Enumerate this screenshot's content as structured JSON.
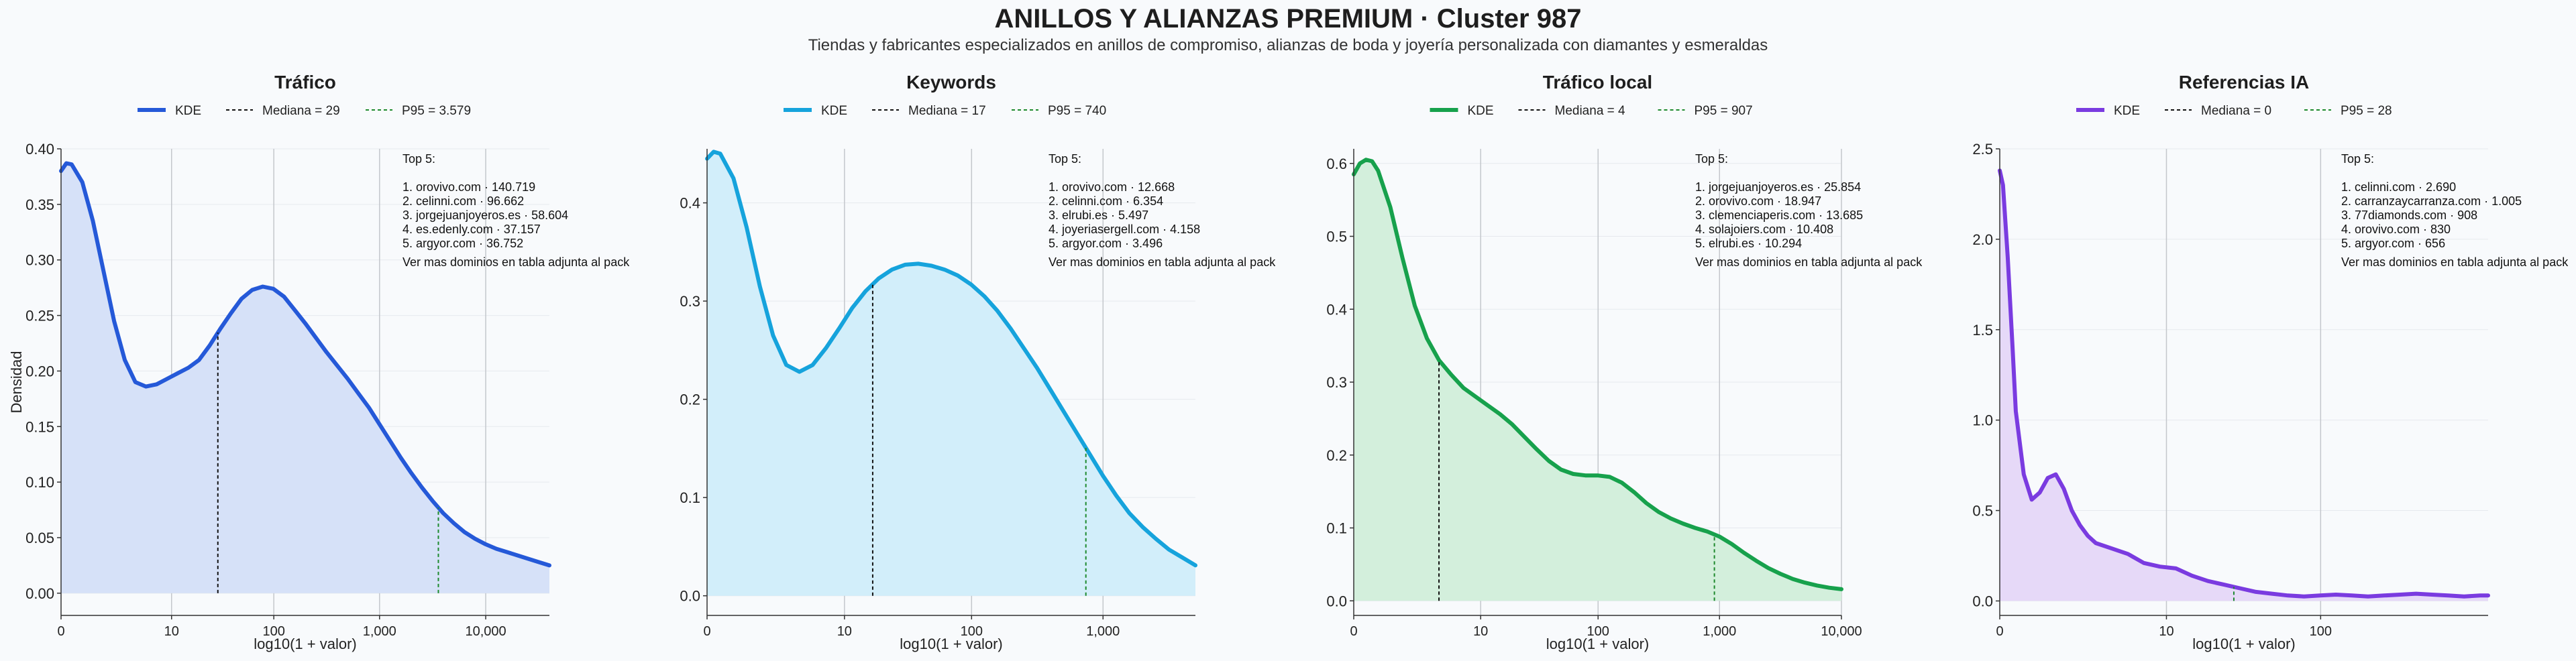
{
  "header": {
    "title": "ANILLOS Y ALIANZAS PREMIUM · Cluster 987",
    "subtitle": "Tiendas y fabricantes especializados en anillos de compromiso, alianzas de boda y joyería personalizada con diamantes y esmeraldas"
  },
  "chart_data": [
    {
      "type": "line",
      "title": "Tráfico",
      "color": "#2559d8",
      "fill": "#d6e1f8",
      "xlabel": "log10(1 + valor)",
      "ylabel": "Densidad",
      "xlim": [
        0,
        4.6
      ],
      "ylim": [
        -0.02,
        0.4
      ],
      "yticks": [
        0.0,
        0.05,
        0.1,
        0.15,
        0.2,
        0.25,
        0.3,
        0.35,
        0.4
      ],
      "ytick_labels": [
        "0.00",
        "0.05",
        "0.10",
        "0.15",
        "0.20",
        "0.25",
        "0.30",
        "0.35",
        "0.40"
      ],
      "xticks": [
        0,
        1.041,
        2.004,
        3.0,
        4.0
      ],
      "xtick_labels": [
        "0",
        "10",
        "100",
        "1,000",
        "10,000"
      ],
      "legend": {
        "kde": "KDE",
        "median": "Mediana = 29",
        "p95": "P95 = 3.579"
      },
      "median_x": 1.477,
      "p95_x": 3.554,
      "top5_title": "Top 5:",
      "top5": [
        "1. orovivo.com · 140.719",
        "2. celinni.com · 96.662",
        "3. jorgejuanjoyeros.es · 58.604",
        "4. es.edenly.com · 37.157",
        "5. argyor.com · 36.752"
      ],
      "top5_note": "Ver mas dominios en tabla adjunta al pack",
      "x": [
        0,
        0.05,
        0.1,
        0.2,
        0.3,
        0.4,
        0.5,
        0.6,
        0.7,
        0.8,
        0.9,
        1.0,
        1.1,
        1.2,
        1.3,
        1.4,
        1.5,
        1.6,
        1.7,
        1.8,
        1.9,
        2.0,
        2.1,
        2.2,
        2.3,
        2.4,
        2.5,
        2.6,
        2.7,
        2.8,
        2.9,
        3.0,
        3.1,
        3.2,
        3.3,
        3.4,
        3.5,
        3.6,
        3.7,
        3.8,
        3.9,
        4.0,
        4.1,
        4.2,
        4.3,
        4.4,
        4.5,
        4.6
      ],
      "y": [
        0.38,
        0.387,
        0.386,
        0.37,
        0.335,
        0.29,
        0.245,
        0.21,
        0.19,
        0.186,
        0.188,
        0.193,
        0.198,
        0.203,
        0.21,
        0.223,
        0.238,
        0.252,
        0.265,
        0.273,
        0.276,
        0.274,
        0.267,
        0.255,
        0.243,
        0.23,
        0.217,
        0.205,
        0.193,
        0.18,
        0.167,
        0.152,
        0.137,
        0.122,
        0.108,
        0.095,
        0.083,
        0.072,
        0.063,
        0.055,
        0.049,
        0.044,
        0.04,
        0.037,
        0.034,
        0.031,
        0.028,
        0.025
      ]
    },
    {
      "type": "line",
      "title": "Keywords",
      "color": "#16a3dc",
      "fill": "#d2eefa",
      "xlabel": "log10(1 + valor)",
      "ylabel": "",
      "xlim": [
        0,
        3.7
      ],
      "ylim": [
        -0.02,
        0.455
      ],
      "yticks": [
        0.0,
        0.1,
        0.2,
        0.3,
        0.4
      ],
      "ytick_labels": [
        "0.0",
        "0.1",
        "0.2",
        "0.3",
        "0.4"
      ],
      "xticks": [
        0,
        1.041,
        2.004,
        3.0
      ],
      "xtick_labels": [
        "0",
        "10",
        "100",
        "1,000"
      ],
      "legend": {
        "kde": "KDE",
        "median": "Mediana = 17",
        "p95": "P95 = 740"
      },
      "median_x": 1.255,
      "p95_x": 2.87,
      "top5_title": "Top 5:",
      "top5": [
        "1. orovivo.com · 12.668",
        "2. celinni.com · 6.354",
        "3. elrubi.es · 5.497",
        "4. joyeriasergell.com · 4.158",
        "5. argyor.com · 3.496"
      ],
      "top5_note": "Ver mas dominios en tabla adjunta al pack",
      "x": [
        0,
        0.05,
        0.1,
        0.2,
        0.3,
        0.4,
        0.5,
        0.6,
        0.7,
        0.8,
        0.9,
        1.0,
        1.1,
        1.2,
        1.3,
        1.4,
        1.5,
        1.6,
        1.7,
        1.8,
        1.9,
        2.0,
        2.1,
        2.2,
        2.3,
        2.4,
        2.5,
        2.6,
        2.7,
        2.8,
        2.9,
        3.0,
        3.1,
        3.2,
        3.3,
        3.4,
        3.5,
        3.6,
        3.7
      ],
      "y": [
        0.445,
        0.452,
        0.45,
        0.425,
        0.375,
        0.315,
        0.265,
        0.235,
        0.228,
        0.235,
        0.252,
        0.272,
        0.293,
        0.31,
        0.323,
        0.332,
        0.337,
        0.338,
        0.336,
        0.332,
        0.326,
        0.317,
        0.305,
        0.29,
        0.272,
        0.252,
        0.232,
        0.21,
        0.188,
        0.166,
        0.144,
        0.122,
        0.102,
        0.084,
        0.07,
        0.058,
        0.047,
        0.039,
        0.031
      ]
    },
    {
      "type": "line",
      "title": "Tráfico local",
      "color": "#17a14c",
      "fill": "#d3efdc",
      "xlabel": "log10(1 + valor)",
      "ylabel": "",
      "xlim": [
        0,
        4.0
      ],
      "ylim": [
        -0.02,
        0.62
      ],
      "yticks": [
        0.0,
        0.1,
        0.2,
        0.3,
        0.4,
        0.5,
        0.6
      ],
      "ytick_labels": [
        "0.0",
        "0.1",
        "0.2",
        "0.3",
        "0.4",
        "0.5",
        "0.6"
      ],
      "xticks": [
        0,
        1.041,
        2.004,
        3.0,
        4.0
      ],
      "xtick_labels": [
        "0",
        "10",
        "100",
        "1,000",
        "10,000"
      ],
      "legend": {
        "kde": "KDE",
        "median": "Mediana = 4",
        "p95": "P95 = 907"
      },
      "median_x": 0.699,
      "p95_x": 2.958,
      "top5_title": "Top 5:",
      "top5": [
        "1. jorgejuanjoyeros.es · 25.854",
        "2. orovivo.com · 18.947",
        "3. clemenciaperis.com · 13.685",
        "4. solajoiers.com · 10.408",
        "5. elrubi.es · 10.294"
      ],
      "top5_note": "Ver mas dominios en tabla adjunta al pack",
      "x": [
        0,
        0.05,
        0.1,
        0.15,
        0.2,
        0.3,
        0.4,
        0.5,
        0.6,
        0.7,
        0.8,
        0.9,
        1.0,
        1.1,
        1.2,
        1.3,
        1.4,
        1.5,
        1.6,
        1.7,
        1.8,
        1.9,
        2.0,
        2.1,
        2.2,
        2.3,
        2.4,
        2.5,
        2.6,
        2.7,
        2.8,
        2.9,
        3.0,
        3.1,
        3.2,
        3.3,
        3.4,
        3.5,
        3.6,
        3.7,
        3.8,
        3.9,
        4.0
      ],
      "y": [
        0.585,
        0.6,
        0.605,
        0.603,
        0.59,
        0.54,
        0.47,
        0.405,
        0.36,
        0.33,
        0.31,
        0.292,
        0.28,
        0.268,
        0.256,
        0.242,
        0.225,
        0.208,
        0.192,
        0.18,
        0.174,
        0.172,
        0.172,
        0.17,
        0.162,
        0.149,
        0.134,
        0.122,
        0.113,
        0.106,
        0.1,
        0.095,
        0.088,
        0.078,
        0.066,
        0.055,
        0.045,
        0.037,
        0.03,
        0.025,
        0.021,
        0.018,
        0.016
      ]
    },
    {
      "type": "line",
      "title": "Referencias IA",
      "color": "#7a3be0",
      "fill": "#e6d9f8",
      "xlabel": "log10(1 + valor)",
      "ylabel": "",
      "xlim": [
        0,
        3.05
      ],
      "ylim": [
        -0.08,
        2.5
      ],
      "yticks": [
        0.0,
        0.5,
        1.0,
        1.5,
        2.0,
        2.5
      ],
      "ytick_labels": [
        "0.0",
        "0.5",
        "1.0",
        "1.5",
        "2.0",
        "2.5"
      ],
      "xticks": [
        0,
        1.041,
        2.004
      ],
      "xtick_labels": [
        "0",
        "10",
        "100"
      ],
      "legend": {
        "kde": "KDE",
        "median": "Mediana = 0",
        "p95": "P95 = 28"
      },
      "median_x": 0.0,
      "p95_x": 1.462,
      "top5_title": "Top 5:",
      "top5": [
        "1. celinni.com · 2.690",
        "2. carranzaycarranza.com · 1.005",
        "3. 77diamonds.com · 908",
        "4. orovivo.com · 830",
        "5. argyor.com · 656"
      ],
      "top5_note": "Ver mas dominios en tabla adjunta al pack",
      "x": [
        0,
        0.02,
        0.05,
        0.08,
        0.1,
        0.15,
        0.2,
        0.25,
        0.3,
        0.35,
        0.4,
        0.45,
        0.5,
        0.55,
        0.6,
        0.7,
        0.8,
        0.9,
        1.0,
        1.1,
        1.2,
        1.3,
        1.4,
        1.5,
        1.6,
        1.7,
        1.8,
        1.9,
        2.0,
        2.1,
        2.2,
        2.3,
        2.4,
        2.5,
        2.6,
        2.7,
        2.8,
        2.9,
        3.0,
        3.05
      ],
      "y": [
        2.38,
        2.3,
        1.9,
        1.4,
        1.05,
        0.7,
        0.56,
        0.6,
        0.68,
        0.7,
        0.62,
        0.5,
        0.42,
        0.36,
        0.32,
        0.29,
        0.26,
        0.21,
        0.19,
        0.18,
        0.14,
        0.11,
        0.09,
        0.07,
        0.05,
        0.04,
        0.03,
        0.025,
        0.03,
        0.035,
        0.03,
        0.025,
        0.03,
        0.035,
        0.04,
        0.035,
        0.03,
        0.025,
        0.03,
        0.03
      ]
    }
  ]
}
